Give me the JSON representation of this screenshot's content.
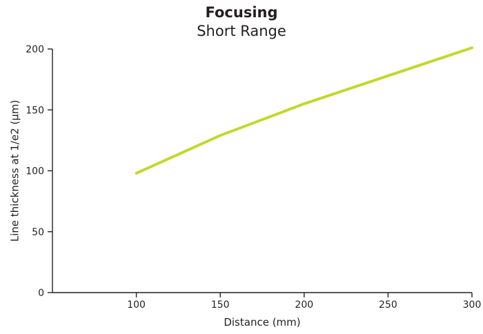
{
  "chart_data": {
    "type": "line",
    "title": "Focusing",
    "subtitle": "Short Range",
    "xlabel": "Distance (mm)",
    "ylabel": "Line thickness at 1/e2 (µm)",
    "xlim": [
      50,
      300
    ],
    "ylim": [
      0,
      200
    ],
    "xticks": [
      100,
      150,
      200,
      250,
      300
    ],
    "yticks": [
      0,
      50,
      100,
      150,
      200
    ],
    "grid": false,
    "series": [
      {
        "color": "#c3d82e",
        "x": [
          100,
          150,
          200,
          250,
          300
        ],
        "y": [
          98,
          129,
          155,
          178,
          201
        ]
      }
    ]
  }
}
